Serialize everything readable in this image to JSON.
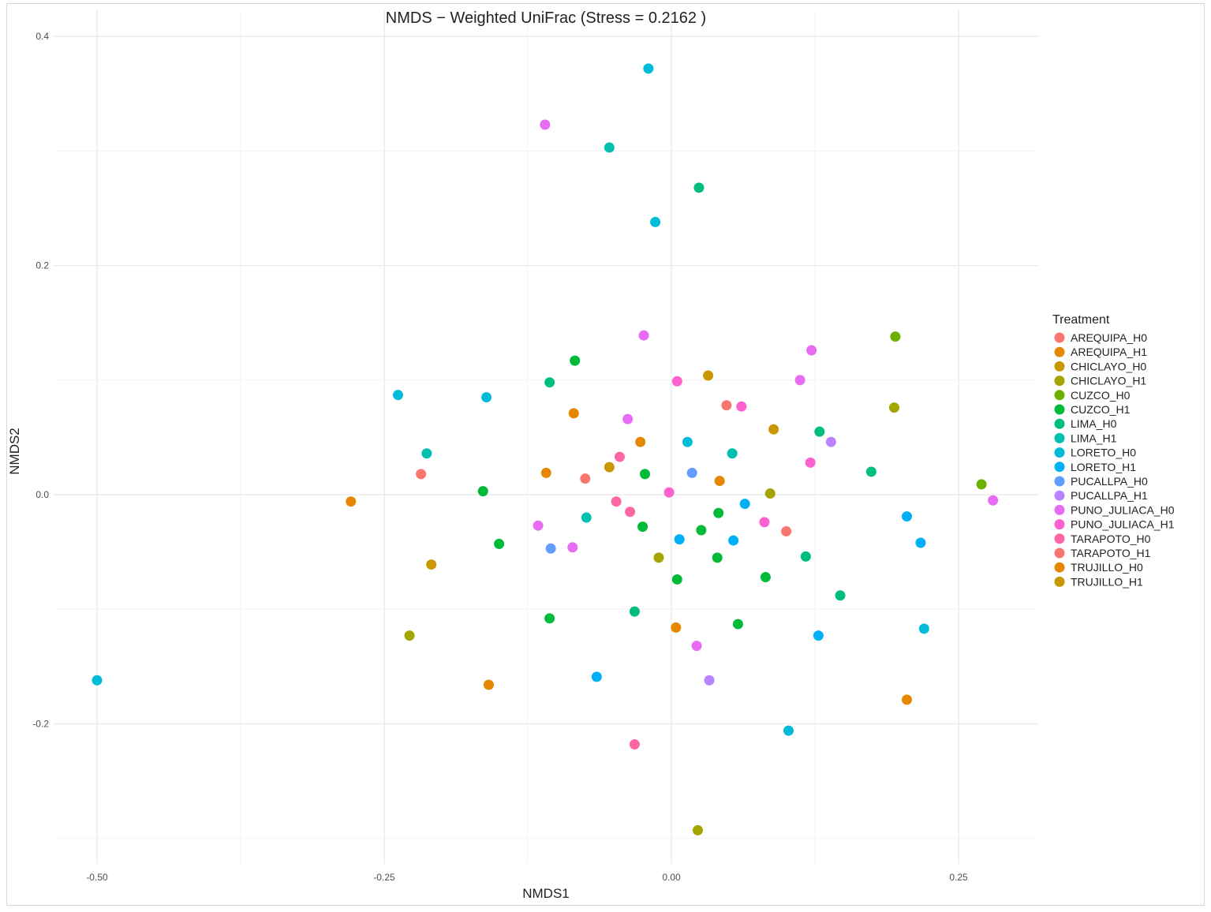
{
  "chart_data": {
    "type": "scatter",
    "title": "NMDS − Weighted UniFrac (Stress = 0.2162 )",
    "xlabel": "NMDS1",
    "ylabel": "NMDS2",
    "xlim": [
      -0.5,
      0.32
    ],
    "ylim": [
      -0.3,
      0.41
    ],
    "x_ticks": [
      -0.5,
      -0.25,
      0.0,
      0.25
    ],
    "x_tick_labels": [
      "-0.50",
      "-0.25",
      "0.00",
      "0.25"
    ],
    "y_ticks": [
      -0.2,
      0.0,
      0.2,
      0.4
    ],
    "y_tick_labels": [
      "-0.2",
      "0.0",
      "0.2",
      "0.4"
    ],
    "grid": true,
    "legend": {
      "title": "Treatment",
      "position": "right",
      "entries": [
        {
          "name": "AREQUIPA_H0",
          "color": "#F8766D"
        },
        {
          "name": "AREQUIPA_H1",
          "color": "#E58700"
        },
        {
          "name": "CHICLAYO_H0",
          "color": "#C99800"
        },
        {
          "name": "CHICLAYO_H1",
          "color": "#A3A500"
        },
        {
          "name": "CUZCO_H0",
          "color": "#6BB100"
        },
        {
          "name": "CUZCO_H1",
          "color": "#00BA38"
        },
        {
          "name": "LIMA_H0",
          "color": "#00BF7D"
        },
        {
          "name": "LIMA_H1",
          "color": "#00C0AF"
        },
        {
          "name": "LORETO_H0",
          "color": "#00BCD8"
        },
        {
          "name": "LORETO_H1",
          "color": "#00B0F6"
        },
        {
          "name": "PUCALLPA_H0",
          "color": "#619CFF"
        },
        {
          "name": "PUCALLPA_H1",
          "color": "#B983FF"
        },
        {
          "name": "PUNO_JULIACA_H0",
          "color": "#E76BF3"
        },
        {
          "name": "PUNO_JULIACA_H1",
          "color": "#FD61D1"
        },
        {
          "name": "TARAPOTO_H0",
          "color": "#FF67A4"
        },
        {
          "name": "TARAPOTO_H1",
          "color": "#F8766D"
        },
        {
          "name": "TRUJILLO_H0",
          "color": "#E58700"
        },
        {
          "name": "TRUJILLO_H1",
          "color": "#C99800"
        }
      ]
    },
    "points": [
      {
        "x": -0.02,
        "y": 0.372,
        "color": "#00BCD8"
      },
      {
        "x": -0.11,
        "y": 0.323,
        "color": "#E76BF3"
      },
      {
        "x": -0.054,
        "y": 0.303,
        "color": "#00C0AF"
      },
      {
        "x": 0.024,
        "y": 0.268,
        "color": "#00BF7D"
      },
      {
        "x": -0.014,
        "y": 0.238,
        "color": "#00BCD8"
      },
      {
        "x": -0.024,
        "y": 0.139,
        "color": "#E76BF3"
      },
      {
        "x": 0.122,
        "y": 0.126,
        "color": "#E76BF3"
      },
      {
        "x": 0.195,
        "y": 0.138,
        "color": "#6BB100"
      },
      {
        "x": -0.084,
        "y": 0.117,
        "color": "#00BA38"
      },
      {
        "x": 0.032,
        "y": 0.104,
        "color": "#C99800"
      },
      {
        "x": 0.112,
        "y": 0.1,
        "color": "#E76BF3"
      },
      {
        "x": 0.005,
        "y": 0.099,
        "color": "#FD61D1"
      },
      {
        "x": -0.106,
        "y": 0.098,
        "color": "#00BF7D"
      },
      {
        "x": -0.238,
        "y": 0.087,
        "color": "#00BCD8"
      },
      {
        "x": -0.161,
        "y": 0.085,
        "color": "#00BCD8"
      },
      {
        "x": 0.194,
        "y": 0.076,
        "color": "#A3A500"
      },
      {
        "x": 0.048,
        "y": 0.078,
        "color": "#F8766D"
      },
      {
        "x": 0.061,
        "y": 0.077,
        "color": "#FD61D1"
      },
      {
        "x": -0.085,
        "y": 0.071,
        "color": "#E58700"
      },
      {
        "x": -0.038,
        "y": 0.066,
        "color": "#E76BF3"
      },
      {
        "x": 0.089,
        "y": 0.057,
        "color": "#C99800"
      },
      {
        "x": 0.129,
        "y": 0.055,
        "color": "#00BF7D"
      },
      {
        "x": 0.014,
        "y": 0.046,
        "color": "#00BCD8"
      },
      {
        "x": -0.027,
        "y": 0.046,
        "color": "#E58700"
      },
      {
        "x": 0.139,
        "y": 0.046,
        "color": "#B983FF"
      },
      {
        "x": 0.053,
        "y": 0.036,
        "color": "#00C0AF"
      },
      {
        "x": -0.213,
        "y": 0.036,
        "color": "#00C0AF"
      },
      {
        "x": -0.045,
        "y": 0.033,
        "color": "#FF67A4"
      },
      {
        "x": 0.121,
        "y": 0.028,
        "color": "#FD61D1"
      },
      {
        "x": -0.054,
        "y": 0.024,
        "color": "#C99800"
      },
      {
        "x": -0.218,
        "y": 0.018,
        "color": "#F8766D"
      },
      {
        "x": -0.109,
        "y": 0.019,
        "color": "#E58700"
      },
      {
        "x": 0.018,
        "y": 0.019,
        "color": "#619CFF"
      },
      {
        "x": -0.023,
        "y": 0.018,
        "color": "#00BA38"
      },
      {
        "x": 0.174,
        "y": 0.02,
        "color": "#00BF7D"
      },
      {
        "x": -0.075,
        "y": 0.014,
        "color": "#F8766D"
      },
      {
        "x": 0.042,
        "y": 0.012,
        "color": "#E58700"
      },
      {
        "x": 0.27,
        "y": 0.009,
        "color": "#6BB100"
      },
      {
        "x": -0.164,
        "y": 0.003,
        "color": "#00BA38"
      },
      {
        "x": -0.002,
        "y": 0.002,
        "color": "#FD61D1"
      },
      {
        "x": 0.086,
        "y": 0.001,
        "color": "#A3A500"
      },
      {
        "x": 0.28,
        "y": -0.005,
        "color": "#E76BF3"
      },
      {
        "x": -0.048,
        "y": -0.006,
        "color": "#FF67A4"
      },
      {
        "x": -0.279,
        "y": -0.006,
        "color": "#E58700"
      },
      {
        "x": 0.064,
        "y": -0.008,
        "color": "#00B0F6"
      },
      {
        "x": -0.036,
        "y": -0.015,
        "color": "#FF67A4"
      },
      {
        "x": 0.041,
        "y": -0.016,
        "color": "#00BA38"
      },
      {
        "x": 0.205,
        "y": -0.019,
        "color": "#00B0F6"
      },
      {
        "x": -0.074,
        "y": -0.02,
        "color": "#00C0AF"
      },
      {
        "x": 0.081,
        "y": -0.024,
        "color": "#FD61D1"
      },
      {
        "x": -0.116,
        "y": -0.027,
        "color": "#E76BF3"
      },
      {
        "x": -0.025,
        "y": -0.028,
        "color": "#00BA38"
      },
      {
        "x": 0.1,
        "y": -0.032,
        "color": "#F8766D"
      },
      {
        "x": 0.026,
        "y": -0.031,
        "color": "#00BA38"
      },
      {
        "x": 0.007,
        "y": -0.039,
        "color": "#00B0F6"
      },
      {
        "x": 0.054,
        "y": -0.04,
        "color": "#00B0F6"
      },
      {
        "x": -0.15,
        "y": -0.043,
        "color": "#00BA38"
      },
      {
        "x": 0.217,
        "y": -0.042,
        "color": "#00B0F6"
      },
      {
        "x": -0.105,
        "y": -0.047,
        "color": "#619CFF"
      },
      {
        "x": -0.086,
        "y": -0.046,
        "color": "#E76BF3"
      },
      {
        "x": -0.209,
        "y": -0.061,
        "color": "#C99800"
      },
      {
        "x": -0.011,
        "y": -0.055,
        "color": "#A3A500"
      },
      {
        "x": 0.04,
        "y": -0.055,
        "color": "#00BA38"
      },
      {
        "x": 0.117,
        "y": -0.054,
        "color": "#00BF7D"
      },
      {
        "x": 0.005,
        "y": -0.074,
        "color": "#00BA38"
      },
      {
        "x": 0.082,
        "y": -0.072,
        "color": "#00BA38"
      },
      {
        "x": 0.147,
        "y": -0.088,
        "color": "#00BF7D"
      },
      {
        "x": -0.032,
        "y": -0.102,
        "color": "#00BF7D"
      },
      {
        "x": -0.106,
        "y": -0.108,
        "color": "#00BA38"
      },
      {
        "x": -0.228,
        "y": -0.123,
        "color": "#A3A500"
      },
      {
        "x": 0.004,
        "y": -0.116,
        "color": "#E58700"
      },
      {
        "x": 0.058,
        "y": -0.113,
        "color": "#00BA38"
      },
      {
        "x": 0.128,
        "y": -0.123,
        "color": "#00B0F6"
      },
      {
        "x": 0.22,
        "y": -0.117,
        "color": "#00BCD8"
      },
      {
        "x": 0.022,
        "y": -0.132,
        "color": "#E76BF3"
      },
      {
        "x": -0.065,
        "y": -0.159,
        "color": "#00B0F6"
      },
      {
        "x": 0.033,
        "y": -0.162,
        "color": "#B983FF"
      },
      {
        "x": -0.159,
        "y": -0.166,
        "color": "#E58700"
      },
      {
        "x": -0.5,
        "y": -0.162,
        "color": "#00BCD8"
      },
      {
        "x": 0.205,
        "y": -0.179,
        "color": "#E58700"
      },
      {
        "x": 0.102,
        "y": -0.206,
        "color": "#00BCD8"
      },
      {
        "x": -0.032,
        "y": -0.218,
        "color": "#FF67A4"
      },
      {
        "x": 0.023,
        "y": -0.293,
        "color": "#A3A500"
      }
    ]
  }
}
